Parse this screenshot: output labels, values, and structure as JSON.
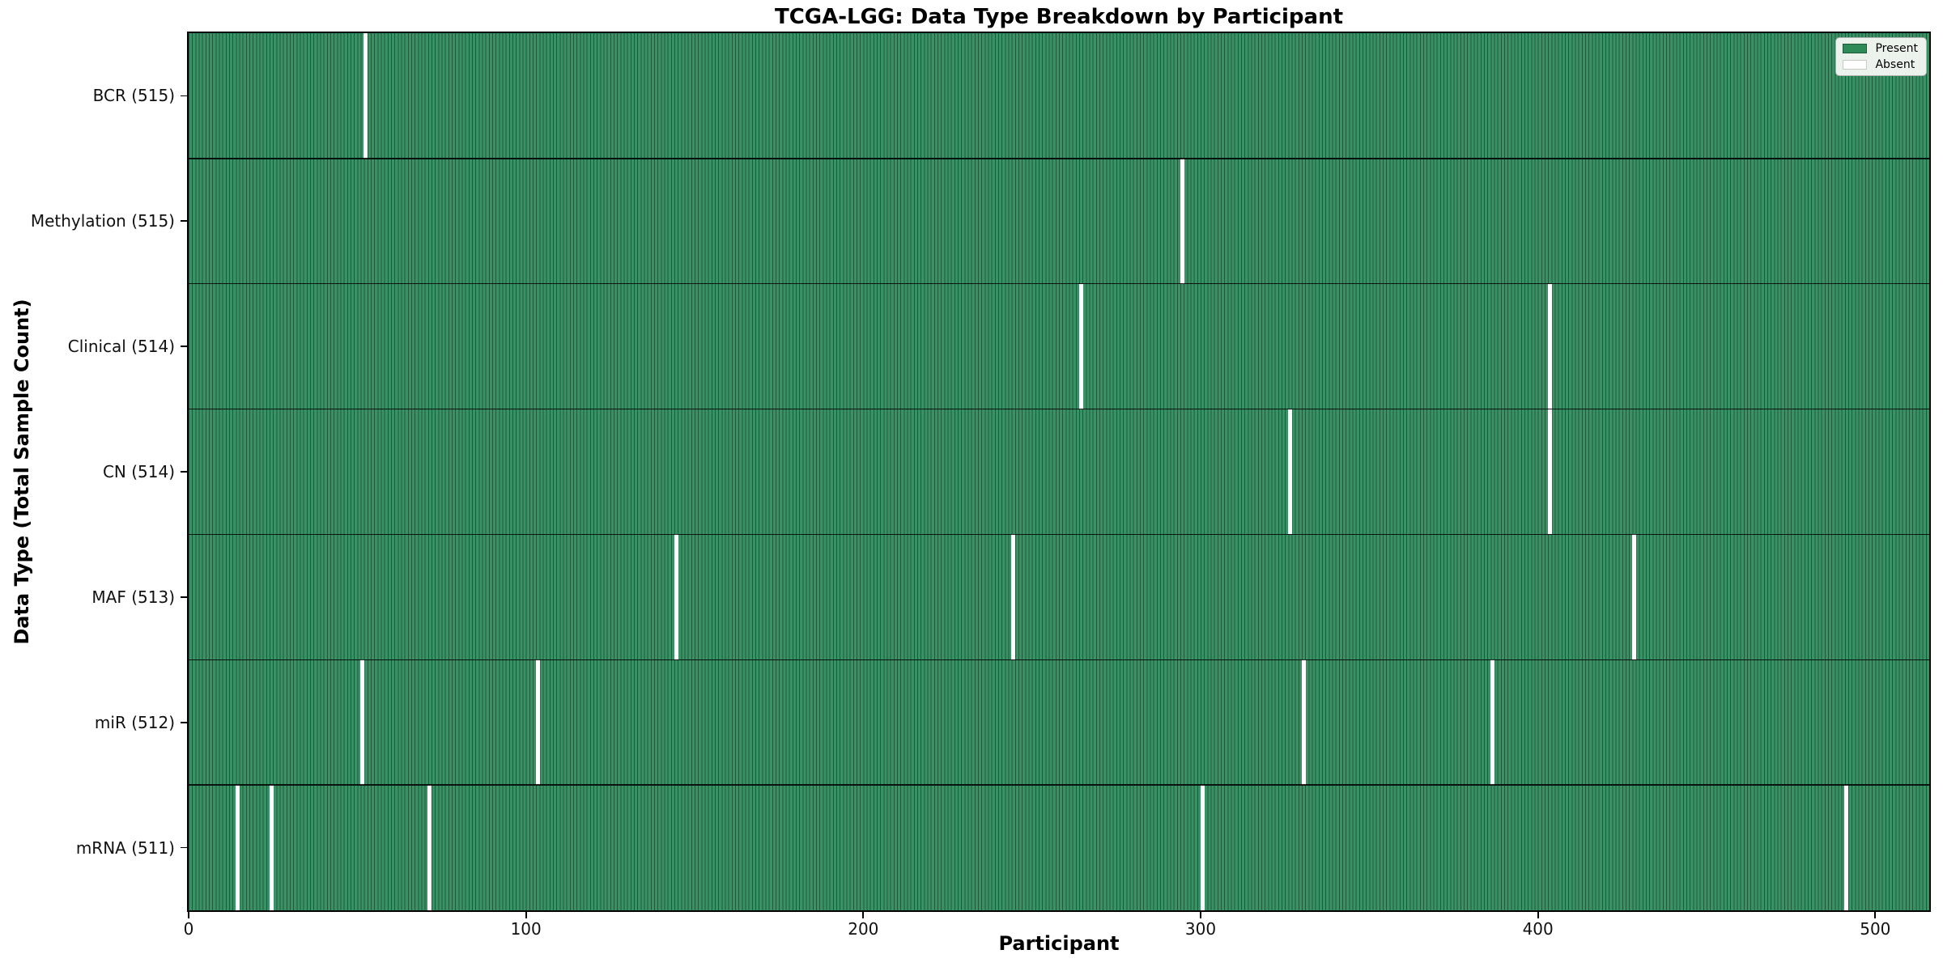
{
  "chart_data": {
    "type": "heatmap",
    "title": "TCGA-LGG: Data Type Breakdown by Participant",
    "xlabel": "Participant",
    "ylabel": "Data Type (Total Sample Count)",
    "n_participants": 516,
    "xlim": [
      0,
      516
    ],
    "x_ticks": [
      0,
      100,
      200,
      300,
      400,
      500
    ],
    "grid": false,
    "legend_position": "upper right",
    "legend": [
      {
        "label": "Present",
        "color": "#2e8b57",
        "edge": "#1e5a39"
      },
      {
        "label": "Absent",
        "color": "#ffffff",
        "edge": "#c8c8c8"
      }
    ],
    "colors": {
      "present_fill": "#3a9166",
      "present_edge": "#1e5a39",
      "absent": "#ffffff",
      "axis": "#000000"
    },
    "rows": [
      {
        "label": "BCR (515)",
        "present_count": 515,
        "absent_participants": [
          52
        ]
      },
      {
        "label": "Methylation (515)",
        "present_count": 515,
        "absent_participants": [
          294
        ]
      },
      {
        "label": "Clinical (514)",
        "present_count": 514,
        "absent_participants": [
          264,
          403
        ]
      },
      {
        "label": "CN (514)",
        "present_count": 514,
        "absent_participants": [
          326,
          403
        ]
      },
      {
        "label": "MAF (513)",
        "present_count": 513,
        "absent_participants": [
          144,
          244,
          428
        ]
      },
      {
        "label": "miR (512)",
        "present_count": 512,
        "absent_participants": [
          51,
          103,
          330,
          386
        ]
      },
      {
        "label": "mRNA (511)",
        "present_count": 511,
        "absent_participants": [
          14,
          24,
          71,
          300,
          491
        ]
      }
    ]
  }
}
